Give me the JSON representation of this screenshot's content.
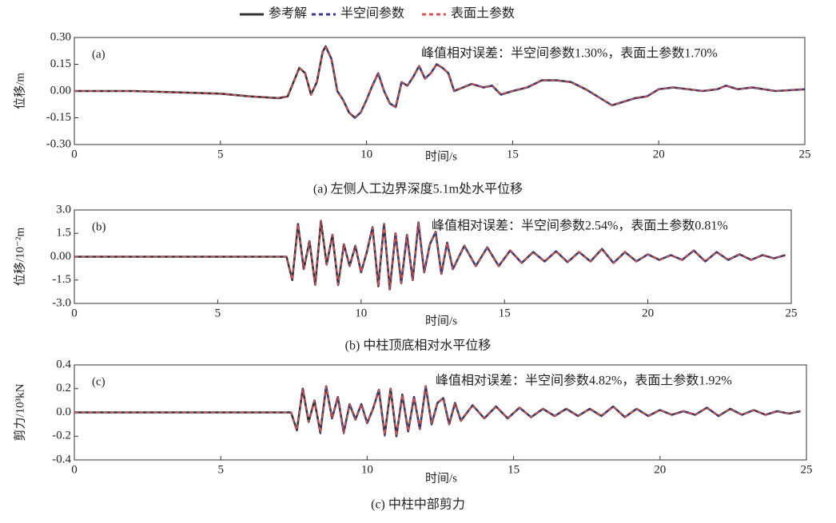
{
  "chart_data": [
    {
      "type": "line",
      "panel_label": "(a)",
      "caption": "(a) 左侧人工边界深度5.1m处水平位移",
      "annotation": "峰值相对误差：半空间参数1.30%，表面土参数1.70%",
      "x_label": "时间/s",
      "y_label": "位移/m",
      "xlim": [
        0,
        25
      ],
      "xticks": [
        0,
        5,
        10,
        15,
        20,
        25
      ],
      "ylim": [
        -0.3,
        0.3
      ],
      "yticks": [
        {
          "value": 0.3,
          "label": "0.30"
        },
        {
          "value": 0.15,
          "label": "0.15"
        },
        {
          "value": 0,
          "label": "0.00"
        },
        {
          "value": -0.15,
          "label": "-0.15"
        },
        {
          "value": -0.3,
          "label": "-0.30"
        }
      ],
      "x": [
        0,
        2,
        4,
        5,
        6,
        7,
        7.3,
        7.5,
        7.7,
        7.9,
        8.1,
        8.3,
        8.5,
        8.6,
        8.8,
        9.0,
        9.2,
        9.4,
        9.6,
        9.8,
        10.0,
        10.2,
        10.4,
        10.6,
        10.8,
        11.0,
        11.2,
        11.4,
        11.6,
        11.8,
        12.0,
        12.2,
        12.4,
        12.6,
        12.8,
        13.0,
        13.3,
        13.6,
        14.0,
        14.3,
        14.6,
        15,
        15.5,
        16,
        16.5,
        17,
        17.5,
        18,
        18.4,
        18.8,
        19.2,
        19.6,
        20,
        20.5,
        21,
        21.5,
        22,
        22.3,
        22.7,
        23.2,
        24,
        25
      ],
      "series": [
        {
          "name": "参考解",
          "color": "#333333",
          "style": "solid",
          "values": [
            0,
            0,
            -0.01,
            -0.015,
            -0.03,
            -0.04,
            -0.03,
            0.05,
            0.13,
            0.1,
            -0.02,
            0.05,
            0.22,
            0.25,
            0.18,
            0,
            -0.05,
            -0.12,
            -0.15,
            -0.12,
            -0.05,
            0.03,
            0.1,
            0,
            -0.07,
            -0.09,
            0.05,
            0.03,
            0.08,
            0.14,
            0.07,
            0.1,
            0.15,
            0.13,
            0.1,
            0,
            0.02,
            0.04,
            0.02,
            0.03,
            -0.02,
            0,
            0.02,
            0.06,
            0.06,
            0.05,
            0.01,
            -0.04,
            -0.08,
            -0.06,
            -0.04,
            -0.03,
            0.01,
            0.02,
            0.01,
            0,
            0.01,
            0.03,
            0.01,
            0.02,
            0,
            0.01
          ]
        },
        {
          "name": "半空间参数",
          "color": "#3a3a9a",
          "style": "dashed",
          "values": [
            0,
            0,
            -0.01,
            -0.015,
            -0.03,
            -0.04,
            -0.03,
            0.05,
            0.13,
            0.1,
            -0.02,
            0.05,
            0.22,
            0.253,
            0.18,
            0,
            -0.05,
            -0.12,
            -0.152,
            -0.12,
            -0.05,
            0.03,
            0.1,
            0,
            -0.07,
            -0.09,
            0.05,
            0.03,
            0.08,
            0.14,
            0.07,
            0.1,
            0.15,
            0.13,
            0.1,
            0,
            0.02,
            0.04,
            0.02,
            0.03,
            -0.02,
            0,
            0.02,
            0.06,
            0.06,
            0.05,
            0.01,
            -0.04,
            -0.08,
            -0.06,
            -0.04,
            -0.03,
            0.01,
            0.02,
            0.01,
            0,
            0.01,
            0.03,
            0.01,
            0.02,
            0,
            0.01
          ]
        },
        {
          "name": "表面土参数",
          "color": "#e05050",
          "style": "dashed",
          "values": [
            0,
            0,
            -0.01,
            -0.015,
            -0.03,
            -0.04,
            -0.03,
            0.05,
            0.13,
            0.1,
            -0.02,
            0.05,
            0.22,
            0.246,
            0.18,
            0,
            -0.05,
            -0.12,
            -0.148,
            -0.12,
            -0.05,
            0.03,
            0.1,
            0,
            -0.07,
            -0.09,
            0.05,
            0.03,
            0.08,
            0.14,
            0.07,
            0.1,
            0.15,
            0.13,
            0.1,
            0,
            0.02,
            0.04,
            0.02,
            0.03,
            -0.02,
            0,
            0.02,
            0.06,
            0.06,
            0.05,
            0.01,
            -0.04,
            -0.08,
            -0.06,
            -0.04,
            -0.03,
            0.01,
            0.02,
            0.01,
            0,
            0.01,
            0.03,
            0.01,
            0.02,
            0,
            0.01
          ]
        }
      ]
    },
    {
      "type": "line",
      "panel_label": "(b)",
      "caption": "(b) 中柱顶底相对水平位移",
      "annotation": "峰值相对误差：半空间参数2.54%，表面土参数0.81%",
      "x_label": "时间/s",
      "y_label": "位移/10⁻²m",
      "xlim": [
        0,
        25
      ],
      "xticks": [
        0,
        5,
        10,
        15,
        20,
        25
      ],
      "ylim": [
        -3,
        3
      ],
      "yticks": [
        {
          "value": 3,
          "label": "3.0"
        },
        1.5,
        {
          "value": 0,
          "label": "0.00"
        },
        -1.5,
        {
          "value": -3,
          "label": "-3.0"
        }
      ],
      "x": [
        0,
        5,
        7,
        7.4,
        7.6,
        7.8,
        8.0,
        8.2,
        8.4,
        8.6,
        8.8,
        9.0,
        9.2,
        9.4,
        9.6,
        9.8,
        10.0,
        10.2,
        10.4,
        10.6,
        10.8,
        11.0,
        11.2,
        11.4,
        11.6,
        11.8,
        12.0,
        12.2,
        12.4,
        12.6,
        12.8,
        13.0,
        13.2,
        13.6,
        14.0,
        14.4,
        14.8,
        15.2,
        15.6,
        16,
        16.4,
        16.8,
        17.2,
        17.6,
        18,
        18.4,
        18.8,
        19.2,
        19.6,
        20,
        20.4,
        20.8,
        21.2,
        21.6,
        22,
        22.4,
        22.8,
        23.2,
        23.6,
        24,
        24.4,
        24.8
      ],
      "series": [
        {
          "name": "参考解",
          "color": "#333333",
          "style": "solid",
          "values": [
            0,
            0,
            0,
            0,
            -1.5,
            2.1,
            -0.8,
            1.0,
            -1.8,
            2.3,
            -0.5,
            1.4,
            -1.8,
            0.8,
            -0.6,
            0.7,
            -1.0,
            0.3,
            1.9,
            -1.9,
            2.1,
            -2.1,
            1.5,
            -1.7,
            1.4,
            -1.5,
            2.2,
            -1.0,
            0.8,
            1.6,
            -1.1,
            0.9,
            -0.8,
            0.7,
            -0.6,
            0.6,
            -0.6,
            0.4,
            -0.4,
            0.3,
            -0.3,
            0.35,
            -0.35,
            0.3,
            -0.3,
            0.5,
            -0.4,
            0.3,
            -0.3,
            0.15,
            -0.2,
            0.1,
            -0.2,
            0.4,
            -0.3,
            0.3,
            -0.2,
            0.15,
            -0.2,
            0.1,
            -0.1,
            0.1
          ]
        },
        {
          "name": "半空间参数",
          "color": "#3a3a9a",
          "style": "dashed",
          "values": [
            0,
            0,
            0,
            0,
            -1.5,
            2.1,
            -0.8,
            1.0,
            -1.8,
            2.3,
            -0.5,
            1.4,
            -1.85,
            0.8,
            -0.6,
            0.7,
            -1.0,
            0.3,
            1.9,
            -1.9,
            2.1,
            -2.15,
            1.5,
            -1.7,
            1.4,
            -1.5,
            2.25,
            -1.0,
            0.8,
            1.6,
            -1.1,
            0.9,
            -0.8,
            0.7,
            -0.6,
            0.6,
            -0.6,
            0.4,
            -0.4,
            0.3,
            -0.3,
            0.35,
            -0.35,
            0.3,
            -0.3,
            0.5,
            -0.4,
            0.3,
            -0.3,
            0.15,
            -0.2,
            0.1,
            -0.2,
            0.4,
            -0.3,
            0.3,
            -0.2,
            0.15,
            -0.2,
            0.1,
            -0.1,
            0.1
          ]
        },
        {
          "name": "表面土参数",
          "color": "#e05050",
          "style": "dashed",
          "values": [
            0,
            0,
            0,
            0,
            -1.5,
            2.1,
            -0.8,
            1.0,
            -1.8,
            2.3,
            -0.5,
            1.4,
            -1.8,
            0.8,
            -0.6,
            0.7,
            -1.0,
            0.3,
            1.9,
            -1.9,
            2.1,
            -2.12,
            1.5,
            -1.7,
            1.4,
            -1.5,
            2.2,
            -1.0,
            0.8,
            1.6,
            -1.1,
            0.9,
            -0.8,
            0.7,
            -0.6,
            0.6,
            -0.6,
            0.4,
            -0.4,
            0.3,
            -0.3,
            0.35,
            -0.35,
            0.3,
            -0.3,
            0.5,
            -0.4,
            0.3,
            -0.3,
            0.15,
            -0.2,
            0.1,
            -0.2,
            0.4,
            -0.3,
            0.3,
            -0.2,
            0.15,
            -0.2,
            0.1,
            -0.1,
            0.1
          ]
        }
      ]
    },
    {
      "type": "line",
      "panel_label": "(c)",
      "caption": "(c) 中柱中部剪力",
      "annotation": "峰值相对误差：半空间参数4.82%，表面土参数1.92%",
      "x_label": "时间/s",
      "y_label": "剪力/10³kN",
      "xlim": [
        0,
        25
      ],
      "xticks": [
        0,
        5,
        10,
        15,
        20,
        25
      ],
      "ylim": [
        -0.4,
        0.4
      ],
      "yticks": [
        0.4,
        0.2,
        {
          "value": 0,
          "label": "0.0"
        },
        -0.2,
        -0.4
      ],
      "x": [
        0,
        5,
        7,
        7.4,
        7.6,
        7.8,
        8.0,
        8.2,
        8.4,
        8.6,
        8.8,
        9.0,
        9.2,
        9.4,
        9.6,
        9.8,
        10.0,
        10.2,
        10.4,
        10.6,
        10.8,
        11.0,
        11.2,
        11.4,
        11.6,
        11.8,
        12.0,
        12.2,
        12.4,
        12.6,
        12.8,
        13.0,
        13.2,
        13.6,
        14.0,
        14.4,
        14.8,
        15.2,
        15.6,
        16,
        16.4,
        16.8,
        17.2,
        17.6,
        18,
        18.4,
        18.8,
        19.2,
        19.6,
        20,
        20.4,
        20.8,
        21.2,
        21.6,
        22,
        22.4,
        22.8,
        23.2,
        23.6,
        24,
        24.4,
        24.8
      ],
      "series": [
        {
          "name": "参考解",
          "color": "#333333",
          "style": "solid",
          "values": [
            0,
            0,
            0,
            0,
            -0.15,
            0.2,
            -0.08,
            0.1,
            -0.17,
            0.22,
            -0.05,
            0.13,
            -0.17,
            0.07,
            -0.06,
            0.07,
            -0.09,
            0.03,
            0.19,
            -0.19,
            0.2,
            -0.2,
            0.15,
            -0.16,
            0.13,
            -0.14,
            0.22,
            -0.1,
            0.08,
            0.12,
            -0.1,
            0.08,
            -0.07,
            0.06,
            -0.05,
            0.05,
            -0.05,
            0.04,
            -0.04,
            0.03,
            -0.03,
            0.03,
            -0.03,
            0.03,
            -0.03,
            0.05,
            -0.04,
            0.03,
            -0.03,
            0.02,
            -0.02,
            0.01,
            -0.02,
            0.04,
            -0.03,
            0.03,
            -0.02,
            0.02,
            -0.02,
            0.01,
            -0.01,
            0.01
          ]
        },
        {
          "name": "半空间参数",
          "color": "#3a3a9a",
          "style": "dashed",
          "values": [
            0,
            0,
            0,
            0,
            -0.15,
            0.2,
            -0.08,
            0.1,
            -0.18,
            0.22,
            -0.05,
            0.13,
            -0.18,
            0.07,
            -0.06,
            0.07,
            -0.09,
            0.03,
            0.19,
            -0.2,
            0.2,
            -0.21,
            0.15,
            -0.16,
            0.13,
            -0.14,
            0.23,
            -0.1,
            0.08,
            0.12,
            -0.1,
            0.08,
            -0.07,
            0.06,
            -0.05,
            0.05,
            -0.05,
            0.04,
            -0.04,
            0.03,
            -0.03,
            0.03,
            -0.03,
            0.03,
            -0.03,
            0.05,
            -0.04,
            0.03,
            -0.03,
            0.02,
            -0.02,
            0.01,
            -0.02,
            0.04,
            -0.03,
            0.03,
            -0.02,
            0.02,
            -0.02,
            0.01,
            -0.01,
            0.01
          ]
        },
        {
          "name": "表面土参数",
          "color": "#e05050",
          "style": "dashed",
          "values": [
            0,
            0,
            0,
            0,
            -0.15,
            0.2,
            -0.08,
            0.1,
            -0.17,
            0.22,
            -0.05,
            0.13,
            -0.17,
            0.07,
            -0.06,
            0.07,
            -0.09,
            0.03,
            0.19,
            -0.19,
            0.2,
            -0.2,
            0.15,
            -0.16,
            0.13,
            -0.14,
            0.22,
            -0.1,
            0.08,
            0.12,
            -0.1,
            0.08,
            -0.07,
            0.06,
            -0.05,
            0.05,
            -0.05,
            0.04,
            -0.04,
            0.03,
            -0.03,
            0.03,
            -0.03,
            0.03,
            -0.03,
            0.05,
            -0.04,
            0.03,
            -0.03,
            0.02,
            -0.02,
            0.01,
            -0.02,
            0.04,
            -0.03,
            0.03,
            -0.02,
            0.02,
            -0.02,
            0.01,
            -0.01,
            0.01
          ]
        }
      ]
    }
  ]
}
